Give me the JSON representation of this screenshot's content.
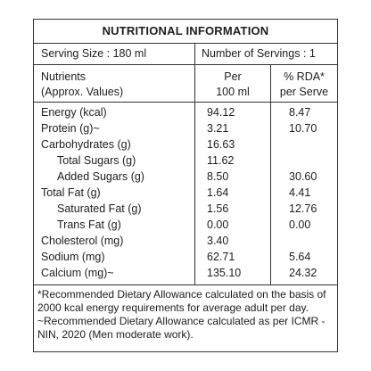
{
  "title": "NUTRITIONAL INFORMATION",
  "serving": {
    "size": "Serving Size : 180 ml",
    "count": "Number of Servings : 1"
  },
  "header": {
    "col1_line1": "Nutrients",
    "col1_line2": "(Approx. Values)",
    "col2_line1": "Per",
    "col2_line2": "100 ml",
    "col3_line1": "% RDA*",
    "col3_line2": "per Serve"
  },
  "rows": [
    {
      "name": "Energy (kcal)",
      "per100": "94.12",
      "rda": "8.47"
    },
    {
      "name": "Protein (g)~",
      "per100": "3.21",
      "rda": "10.70"
    },
    {
      "name": "Carbohydrates (g)",
      "per100": "16.63",
      "rda": ""
    },
    {
      "name": "Total Sugars (g)",
      "per100": "11.62",
      "rda": ""
    },
    {
      "name": "Added Sugars (g)",
      "per100": "8.50",
      "rda": "30.60"
    },
    {
      "name": "Total Fat (g)",
      "per100": "1.64",
      "rda": "4.41"
    },
    {
      "name": "Saturated Fat (g)",
      "per100": "1.56",
      "rda": "12.76"
    },
    {
      "name": "Trans Fat (g)",
      "per100": "0.00",
      "rda": "0.00"
    },
    {
      "name": "Cholesterol (mg)",
      "per100": "3.40",
      "rda": ""
    },
    {
      "name": "Sodium (mg)",
      "per100": "62.71",
      "rda": "5.64"
    },
    {
      "name": "Calcium (mg)~",
      "per100": "135.10",
      "rda": "24.32"
    }
  ],
  "footnotes": [
    "*Recommended Dietary Allowance calculated on the basis of",
    "2000 kcal energy requirements for average adult per day.",
    "~Recommended Dietary Allowance calculated as per ICMR -",
    "NIN, 2020 (Men moderate work)."
  ]
}
